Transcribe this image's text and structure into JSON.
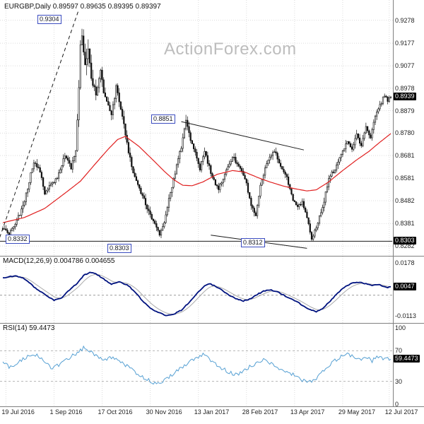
{
  "watermark": "ActionForex.com",
  "price_panel": {
    "title": "EURGBP,Daily 0.89597 0.89635 0.89395 0.89397"
  },
  "macd_panel": {
    "title": "MACD(12,26,9) 0.004786 0.004655"
  },
  "rsi_panel": {
    "title": "RSI(14) 59.4473"
  },
  "colors": {
    "candle": "#111111",
    "ma": "#e02020",
    "macd": "#00127f",
    "signal": "#a9a9a9",
    "rsi": "#56a0d3",
    "grid": "#dcdcdc",
    "divider": "#808080",
    "trendline": "#1a1a1a",
    "highlight_bg": "#000000",
    "highlight_text": "#ffffff",
    "annotation_border": "#3b4cc0",
    "watermark": "#bdbdbd"
  },
  "x_axis": {
    "labels": [
      "19 Jul 2016",
      "1 Sep 2016",
      "17 Oct 2016",
      "30 Nov 2016",
      "13 Jan 2017",
      "28 Feb 2017",
      "13 Apr 2017",
      "29 May 2017",
      "12 Jul 2017"
    ],
    "bars": [
      2,
      33,
      64,
      95,
      126,
      157,
      188,
      219,
      249
    ]
  },
  "chart_data": {
    "type": "candlestick",
    "symbol": "EURGBP",
    "timeframe": "Daily",
    "ohlc": {
      "open": 0.89597,
      "high": 0.89635,
      "low": 0.89395,
      "close": 0.89397
    },
    "bars": 251,
    "price_range": [
      0.827,
      0.933
    ],
    "y_ticks": [
      "0.9278",
      "0.9177",
      "0.9077",
      "0.8978",
      "0.8879",
      "0.8780",
      "0.8681",
      "0.8581",
      "0.8482",
      "0.8381",
      "0.8282"
    ],
    "current_price_label": "0.8939",
    "support_label": "0.8303",
    "close_anchors": [
      [
        0,
        0.836,
        0.003
      ],
      [
        4,
        0.8335,
        0.0028
      ],
      [
        9,
        0.8392,
        0.003
      ],
      [
        14,
        0.8478,
        0.004
      ],
      [
        20,
        0.8658,
        0.004
      ],
      [
        24,
        0.8608,
        0.0032
      ],
      [
        27,
        0.8515,
        0.003
      ],
      [
        31,
        0.8556,
        0.003
      ],
      [
        35,
        0.8582,
        0.003
      ],
      [
        40,
        0.8678,
        0.0038
      ],
      [
        44,
        0.8628,
        0.0032
      ],
      [
        47,
        0.8695,
        0.006
      ],
      [
        50,
        0.914,
        0.013
      ],
      [
        51,
        0.923,
        0.015
      ],
      [
        53,
        0.9058,
        0.01
      ],
      [
        55,
        0.9148,
        0.0085
      ],
      [
        57,
        0.9022,
        0.0075
      ],
      [
        60,
        0.8952,
        0.006
      ],
      [
        63,
        0.9048,
        0.0065
      ],
      [
        66,
        0.8932,
        0.005
      ],
      [
        70,
        0.8862,
        0.0048
      ],
      [
        73,
        0.8986,
        0.0055
      ],
      [
        76,
        0.889,
        0.0048
      ],
      [
        81,
        0.8702,
        0.0048
      ],
      [
        85,
        0.8582,
        0.004
      ],
      [
        90,
        0.8502,
        0.0038
      ],
      [
        94,
        0.8432,
        0.0036
      ],
      [
        98,
        0.8382,
        0.0036
      ],
      [
        101,
        0.8332,
        0.003
      ],
      [
        104,
        0.8392,
        0.0036
      ],
      [
        106,
        0.8452,
        0.0038
      ],
      [
        110,
        0.8582,
        0.0042
      ],
      [
        115,
        0.8722,
        0.0044
      ],
      [
        118,
        0.8838,
        0.0046
      ],
      [
        121,
        0.8752,
        0.004
      ],
      [
        124,
        0.87,
        0.0036
      ],
      [
        127,
        0.8622,
        0.0036
      ],
      [
        130,
        0.87,
        0.0036
      ],
      [
        135,
        0.8582,
        0.0034
      ],
      [
        139,
        0.8532,
        0.0032
      ],
      [
        143,
        0.8602,
        0.0032
      ],
      [
        148,
        0.8678,
        0.0036
      ],
      [
        153,
        0.8622,
        0.0032
      ],
      [
        157,
        0.8562,
        0.003
      ],
      [
        160,
        0.8452,
        0.0036
      ],
      [
        163,
        0.8422,
        0.003
      ],
      [
        167,
        0.8582,
        0.0038
      ],
      [
        171,
        0.8658,
        0.0036
      ],
      [
        175,
        0.87,
        0.0036
      ],
      [
        179,
        0.864,
        0.003
      ],
      [
        183,
        0.8582,
        0.003
      ],
      [
        187,
        0.8482,
        0.0036
      ],
      [
        190,
        0.8452,
        0.003
      ],
      [
        193,
        0.8472,
        0.0028
      ],
      [
        196,
        0.8402,
        0.0034
      ],
      [
        199,
        0.8318,
        0.0034
      ],
      [
        202,
        0.8362,
        0.0034
      ],
      [
        206,
        0.8452,
        0.0036
      ],
      [
        210,
        0.8582,
        0.0038
      ],
      [
        214,
        0.8622,
        0.003
      ],
      [
        218,
        0.8678,
        0.0036
      ],
      [
        222,
        0.8748,
        0.0036
      ],
      [
        225,
        0.8702,
        0.003
      ],
      [
        228,
        0.8782,
        0.0036
      ],
      [
        231,
        0.8722,
        0.003
      ],
      [
        234,
        0.8802,
        0.0036
      ],
      [
        237,
        0.8762,
        0.0028
      ],
      [
        240,
        0.8852,
        0.0034
      ],
      [
        243,
        0.8902,
        0.0032
      ],
      [
        246,
        0.8948,
        0.003
      ],
      [
        248,
        0.8922,
        0.0026
      ],
      [
        250,
        0.894,
        0.0024
      ]
    ],
    "ma_anchors": [
      [
        0,
        0.8385
      ],
      [
        14,
        0.8408
      ],
      [
        27,
        0.8448
      ],
      [
        41,
        0.852
      ],
      [
        50,
        0.8568
      ],
      [
        59,
        0.864
      ],
      [
        68,
        0.871
      ],
      [
        74,
        0.8752
      ],
      [
        79,
        0.8766
      ],
      [
        88,
        0.872
      ],
      [
        97,
        0.866
      ],
      [
        104,
        0.8612
      ],
      [
        110,
        0.8575
      ],
      [
        116,
        0.855
      ],
      [
        122,
        0.8548
      ],
      [
        129,
        0.8565
      ],
      [
        138,
        0.8598
      ],
      [
        148,
        0.8615
      ],
      [
        156,
        0.8608
      ],
      [
        164,
        0.8585
      ],
      [
        172,
        0.8565
      ],
      [
        180,
        0.8548
      ],
      [
        188,
        0.8535
      ],
      [
        196,
        0.8525
      ],
      [
        202,
        0.853
      ],
      [
        210,
        0.8565
      ],
      [
        219,
        0.8615
      ],
      [
        228,
        0.8662
      ],
      [
        236,
        0.87
      ],
      [
        243,
        0.874
      ],
      [
        250,
        0.8778
      ]
    ],
    "annotations": {
      "price_labels": [
        {
          "text": "0.9304",
          "x": 53,
          "y": 21
        },
        {
          "text": "0.8851",
          "x": 214,
          "y": 162
        },
        {
          "text": "0.8332",
          "x": 8,
          "y": 332
        },
        {
          "text": "0.8303",
          "x": 152,
          "y": 345
        },
        {
          "text": "0.8312",
          "x": 341,
          "y": 337
        }
      ],
      "lines": [
        {
          "type": "dashed",
          "x1": -2,
          "p1": 0.832,
          "x2": 49,
          "p2": 0.9326
        },
        {
          "type": "solid",
          "x1": 115,
          "p1": 0.8831,
          "x2": 194,
          "p2": 0.8706
        },
        {
          "type": "solid",
          "x1": 134,
          "p1": 0.833,
          "x2": 196,
          "p2": 0.8272
        },
        {
          "type": "solid",
          "x1": -2,
          "p1": 0.8303,
          "x2": 251,
          "p2": 0.8303
        }
      ]
    },
    "macd": {
      "params": "12,26,9",
      "value": 0.004786,
      "signal": 0.004655,
      "range": [
        -0.0125,
        0.0185
      ],
      "ticks": [
        {
          "v": 0.0178,
          "label": "0.0178"
        },
        {
          "v": -0.0113,
          "label": "-0.0113"
        }
      ],
      "current": {
        "v": 0.0047,
        "label": "0.0047"
      },
      "anchors": [
        [
          0,
          0.0095
        ],
        [
          8,
          0.0106
        ],
        [
          14,
          0.009
        ],
        [
          20,
          0.0046
        ],
        [
          27,
          0.0005
        ],
        [
          33,
          -0.0028
        ],
        [
          38,
          -0.0013
        ],
        [
          43,
          0.0028
        ],
        [
          48,
          0.0066
        ],
        [
          52,
          0.0108
        ],
        [
          56,
          0.0125
        ],
        [
          60,
          0.0118
        ],
        [
          65,
          0.0089
        ],
        [
          70,
          0.006
        ],
        [
          75,
          0.0072
        ],
        [
          80,
          0.0058
        ],
        [
          85,
          0.002
        ],
        [
          90,
          -0.003
        ],
        [
          95,
          -0.007
        ],
        [
          100,
          -0.0095
        ],
        [
          105,
          -0.011
        ],
        [
          110,
          -0.0105
        ],
        [
          115,
          -0.0082
        ],
        [
          120,
          -0.004
        ],
        [
          125,
          0.001
        ],
        [
          130,
          0.0052
        ],
        [
          133,
          0.0064
        ],
        [
          137,
          0.005
        ],
        [
          141,
          0.0028
        ],
        [
          146,
          0.0
        ],
        [
          151,
          -0.0022
        ],
        [
          155,
          -0.0032
        ],
        [
          160,
          -0.0018
        ],
        [
          164,
          0.0005
        ],
        [
          168,
          0.0022
        ],
        [
          172,
          0.003
        ],
        [
          177,
          0.0018
        ],
        [
          181,
          0.0
        ],
        [
          186,
          -0.0022
        ],
        [
          190,
          -0.0038
        ],
        [
          194,
          -0.006
        ],
        [
          198,
          -0.008
        ],
        [
          202,
          -0.009
        ],
        [
          206,
          -0.0072
        ],
        [
          210,
          -0.004
        ],
        [
          214,
          -0.0005
        ],
        [
          218,
          0.003
        ],
        [
          222,
          0.0055
        ],
        [
          226,
          0.0068
        ],
        [
          230,
          0.007
        ],
        [
          234,
          0.0062
        ],
        [
          238,
          0.0055
        ],
        [
          242,
          0.006
        ],
        [
          245,
          0.0048
        ],
        [
          248,
          0.0042
        ],
        [
          250,
          0.0047
        ]
      ]
    },
    "rsi": {
      "period": 14,
      "value": 59.4473,
      "current_label": "59.4473",
      "range": [
        0,
        100
      ],
      "levels": [
        70,
        30
      ],
      "ticks": [
        {
          "v": 100,
          "label": "100"
        },
        {
          "v": 70,
          "label": "70"
        },
        {
          "v": 30,
          "label": "30"
        },
        {
          "v": 0,
          "label": "0"
        }
      ],
      "anchors": [
        [
          0,
          55
        ],
        [
          5,
          48
        ],
        [
          10,
          56
        ],
        [
          16,
          62
        ],
        [
          22,
          66
        ],
        [
          27,
          54
        ],
        [
          32,
          47
        ],
        [
          37,
          53
        ],
        [
          42,
          60
        ],
        [
          47,
          66
        ],
        [
          52,
          74
        ],
        [
          56,
          70
        ],
        [
          60,
          63
        ],
        [
          65,
          58
        ],
        [
          70,
          62
        ],
        [
          75,
          58
        ],
        [
          80,
          50
        ],
        [
          85,
          42
        ],
        [
          90,
          36
        ],
        [
          95,
          30
        ],
        [
          100,
          27
        ],
        [
          105,
          33
        ],
        [
          110,
          40
        ],
        [
          115,
          48
        ],
        [
          120,
          55
        ],
        [
          125,
          62
        ],
        [
          130,
          66
        ],
        [
          133,
          60
        ],
        [
          137,
          52
        ],
        [
          141,
          47
        ],
        [
          146,
          42
        ],
        [
          151,
          38
        ],
        [
          155,
          44
        ],
        [
          160,
          50
        ],
        [
          164,
          55
        ],
        [
          168,
          58
        ],
        [
          172,
          54
        ],
        [
          177,
          48
        ],
        [
          181,
          44
        ],
        [
          186,
          40
        ],
        [
          190,
          35
        ],
        [
          194,
          31
        ],
        [
          198,
          29
        ],
        [
          202,
          34
        ],
        [
          206,
          42
        ],
        [
          210,
          50
        ],
        [
          214,
          57
        ],
        [
          218,
          62
        ],
        [
          222,
          66
        ],
        [
          226,
          63
        ],
        [
          230,
          58
        ],
        [
          234,
          62
        ],
        [
          238,
          57
        ],
        [
          242,
          63
        ],
        [
          245,
          58
        ],
        [
          248,
          61
        ],
        [
          250,
          59
        ]
      ]
    }
  }
}
